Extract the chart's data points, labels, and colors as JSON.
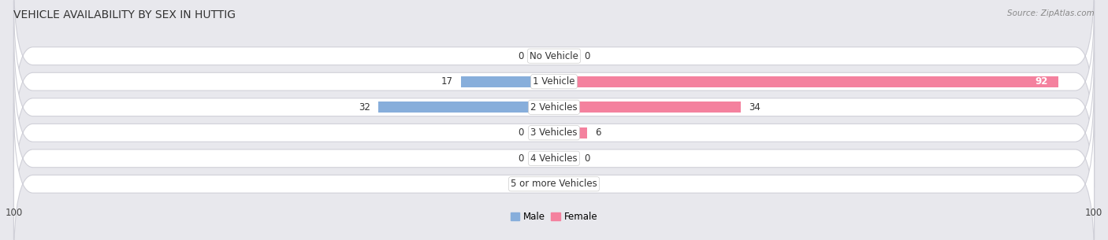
{
  "title": "VEHICLE AVAILABILITY BY SEX IN HUTTIG",
  "source": "Source: ZipAtlas.com",
  "categories": [
    "No Vehicle",
    "1 Vehicle",
    "2 Vehicles",
    "3 Vehicles",
    "4 Vehicles",
    "5 or more Vehicles"
  ],
  "male_values": [
    0,
    17,
    32,
    0,
    0,
    0
  ],
  "female_values": [
    0,
    92,
    34,
    6,
    0,
    0
  ],
  "male_color": "#87AEDB",
  "female_color": "#F4819E",
  "male_stub_color": "#bad3ee",
  "female_stub_color": "#f9b8ca",
  "male_label": "Male",
  "female_label": "Female",
  "axis_max": 100,
  "bg_color": "#e8e8ed",
  "row_bg_color": "#f2f2f5",
  "label_fontsize": 8.5,
  "title_fontsize": 10,
  "source_fontsize": 7.5,
  "stub_size": 8
}
